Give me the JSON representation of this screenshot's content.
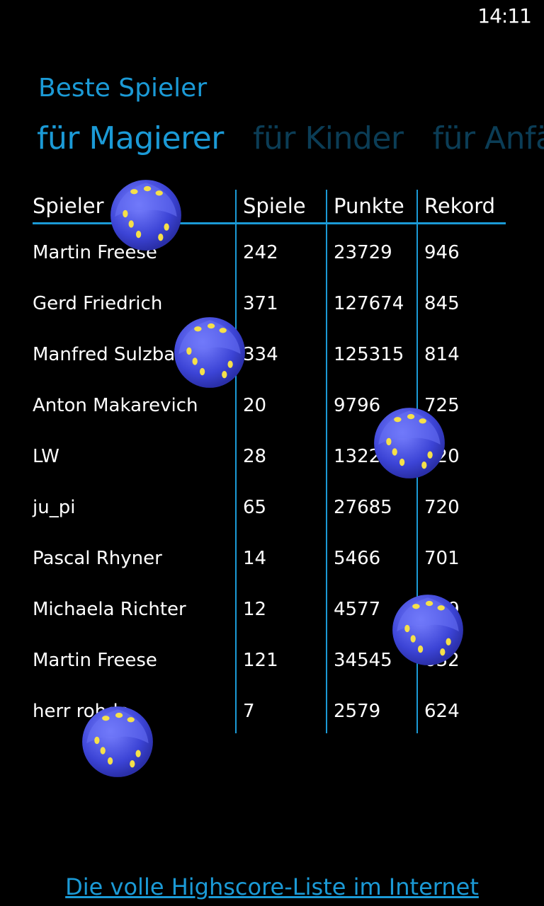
{
  "status": {
    "time": "14:11"
  },
  "app": {
    "title": "Beste Spieler"
  },
  "pivot": [
    {
      "label": "für Magierer",
      "active": true
    },
    {
      "label": "für Kinder",
      "active": false
    },
    {
      "label": "für Anfä",
      "active": false
    }
  ],
  "table": {
    "headers": [
      "Spieler",
      "Spiele",
      "Punkte",
      "Rekord"
    ],
    "rows": [
      [
        "Martin Freese",
        "242",
        "23729",
        "946"
      ],
      [
        "Gerd Friedrich",
        "371",
        "127674",
        "845"
      ],
      [
        "Manfred Sulzbacher",
        "334",
        "125315",
        "814"
      ],
      [
        "Anton Makarevich",
        "20",
        "9796",
        "725"
      ],
      [
        "LW",
        "28",
        "13223",
        "720"
      ],
      [
        "ju_pi",
        "65",
        "27685",
        "720"
      ],
      [
        "Pascal Rhyner",
        "14",
        "5466",
        "701"
      ],
      [
        "Michaela Richter",
        "12",
        "4577",
        "649"
      ],
      [
        "Martin Freese",
        "121",
        "34545",
        "632"
      ],
      [
        "herr rohde",
        "7",
        "2579",
        "624"
      ]
    ]
  },
  "dice_color": "#4a52e0",
  "footer": {
    "link_label": "Die volle Highscore-Liste im Internet"
  }
}
